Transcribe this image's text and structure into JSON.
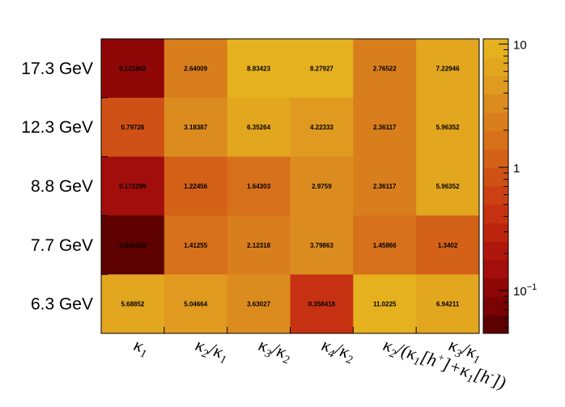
{
  "chart_data": {
    "type": "heatmap",
    "rows": [
      "17.3 GeV",
      "12.3 GeV",
      "8.8 GeV",
      "7.7 GeV",
      "6.3 GeV"
    ],
    "columns": [
      [
        {
          "t": "κ"
        },
        {
          "t": "1",
          "s": "sub"
        }
      ],
      [
        {
          "t": "κ"
        },
        {
          "t": "2",
          "s": "sub"
        },
        {
          "t": "/κ"
        },
        {
          "t": "1",
          "s": "sub"
        }
      ],
      [
        {
          "t": "κ"
        },
        {
          "t": "3",
          "s": "sub"
        },
        {
          "t": "/κ"
        },
        {
          "t": "2",
          "s": "sub"
        }
      ],
      [
        {
          "t": "κ"
        },
        {
          "t": "4",
          "s": "sub"
        },
        {
          "t": "/κ"
        },
        {
          "t": "2",
          "s": "sub"
        }
      ],
      [
        {
          "t": "κ"
        },
        {
          "t": "2",
          "s": "sub"
        },
        {
          "t": "/(κ"
        },
        {
          "t": "1",
          "s": "sub"
        },
        {
          "t": "[h"
        },
        {
          "t": "+",
          "s": "sup"
        },
        {
          "t": "]+κ"
        },
        {
          "t": "1",
          "s": "sub"
        },
        {
          "t": "[h"
        },
        {
          "t": "-",
          "s": "sup"
        },
        {
          "t": "])"
        }
      ],
      [
        {
          "t": "κ"
        },
        {
          "t": "3",
          "s": "sub"
        },
        {
          "t": "/κ"
        },
        {
          "t": "1",
          "s": "sub"
        }
      ]
    ],
    "values": [
      [
        0.121802,
        2.64009,
        8.83423,
        8.27927,
        2.76522,
        7.22946
      ],
      [
        0.79726,
        3.18387,
        6.35264,
        4.22333,
        2.36117,
        5.96352
      ],
      [
        0.173299,
        1.22456,
        1.64303,
        2.9759,
        2.36117,
        5.96352
      ],
      [
        0.045329,
        1.41255,
        2.12318,
        3.79863,
        1.45866,
        1.3402
      ],
      [
        5.68852,
        5.04664,
        3.63027,
        0.358418,
        11.0225,
        6.94211
      ]
    ],
    "value_labels": [
      [
        "0.121802",
        "2.64009",
        "8.83423",
        "8.27927",
        "2.76522",
        "7.22946"
      ],
      [
        "0.79726",
        "3.18387",
        "6.35264",
        "4.22333",
        "2.36117",
        "5.96352"
      ],
      [
        "0.173299",
        "1.22456",
        "1.64303",
        "2.9759",
        "2.36117",
        "5.96352"
      ],
      [
        "0.045329",
        "1.41255",
        "2.12318",
        "3.79863",
        "1.45866",
        "1.3402"
      ],
      [
        "5.68852",
        "5.04664",
        "3.63027",
        "0.358418",
        "11.0225",
        "6.94211"
      ]
    ],
    "colorbar": {
      "scale": "log",
      "range": [
        0.045,
        11.0225
      ],
      "tick_labels": [
        {
          "value": 10,
          "text": "10"
        },
        {
          "value": 1,
          "text": "1"
        },
        {
          "value": 0.1,
          "text": "10",
          "exponent": "−1"
        }
      ],
      "colors": [
        "#5e0000",
        "#7a0303",
        "#8f0707",
        "#a10e0b",
        "#b0170c",
        "#bd240e",
        "#c63211",
        "#cc4113",
        "#d05116",
        "#d36118",
        "#d6701a",
        "#d97e1c",
        "#dc8c1e",
        "#df9a1f",
        "#e2a61f",
        "#e5b11f"
      ]
    },
    "grid": false,
    "legend": "right"
  }
}
